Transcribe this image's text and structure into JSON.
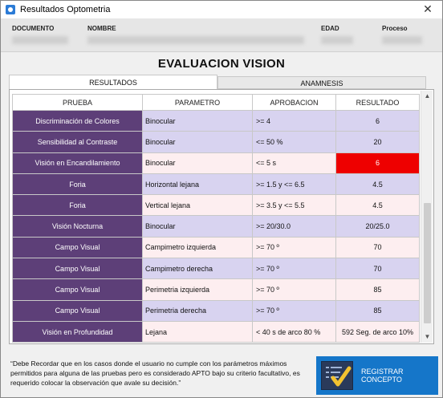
{
  "window": {
    "title": "Resultados Optometria",
    "close_glyph": "✕"
  },
  "header": {
    "documento_label": "DOCUMENTO",
    "nombre_label": "NOMBRE",
    "edad_label": "EDAD",
    "proceso_label": "Proceso"
  },
  "main_title": "EVALUACION VISION",
  "tabs": [
    {
      "label": "RESULTADOS",
      "active": true
    },
    {
      "label": "ANAMNESIS",
      "active": false
    }
  ],
  "table": {
    "columns": [
      "PRUEBA",
      "PARAMETRO",
      "APROBACION",
      "RESULTADO"
    ],
    "rows": [
      {
        "prueba": "Discriminación de Colores",
        "parametro": "Binocular",
        "aprobacion": ">= 4",
        "resultado": "6"
      },
      {
        "prueba": "Sensibilidad al Contraste",
        "parametro": "Binocular",
        "aprobacion": "<= 50 %",
        "resultado": "20"
      },
      {
        "prueba": "Visión en Encandilamiento",
        "parametro": "Binocular",
        "aprobacion": "<= 5 s",
        "resultado": "6"
      },
      {
        "prueba": "Foria",
        "parametro": "Horizontal lejana",
        "aprobacion": ">= 1.5 y <= 6.5",
        "resultado": "4.5"
      },
      {
        "prueba": "Foria",
        "parametro": "Vertical lejana",
        "aprobacion": ">= 3.5 y <= 5.5",
        "resultado": "4.5"
      },
      {
        "prueba": "Visión Nocturna",
        "parametro": "Binocular",
        "aprobacion": ">= 20/30.0",
        "resultado": "20/25.0"
      },
      {
        "prueba": "Campo Visual",
        "parametro": "Campimetro izquierda",
        "aprobacion": ">= 70 º",
        "resultado": "70"
      },
      {
        "prueba": "Campo Visual",
        "parametro": "Campimetro derecha",
        "aprobacion": ">= 70 º",
        "resultado": "70"
      },
      {
        "prueba": "Campo Visual",
        "parametro": "Perimetria izquierda",
        "aprobacion": ">= 70 º",
        "resultado": "85"
      },
      {
        "prueba": "Campo Visual",
        "parametro": "Perimetria derecha",
        "aprobacion": ">= 70 º",
        "resultado": "85"
      },
      {
        "prueba": "Visión en Profundidad",
        "parametro": "Lejana",
        "aprobacion": "< 40 s de arco 80 %",
        "resultado": "592 Seg. de arco 10%"
      }
    ]
  },
  "footer_note": "“Debe Recordar que en los casos donde el usuario no cumple con los parámetros máximos permitidos para alguna de las pruebas pero es considerado APTO bajo su criterio facultativo, es requerido colocar la observación que avale su decisión.”",
  "register_button": {
    "label": "REGISTRAR CONCEPTO",
    "icon": "checklist-pencil-icon"
  },
  "colors": {
    "prueba_bg": "#5d3f78",
    "row_lavender": "#d8d3f0",
    "row_pink": "#fdeef0",
    "flag_red": "#ee0000",
    "button_blue": "#1576c9"
  }
}
